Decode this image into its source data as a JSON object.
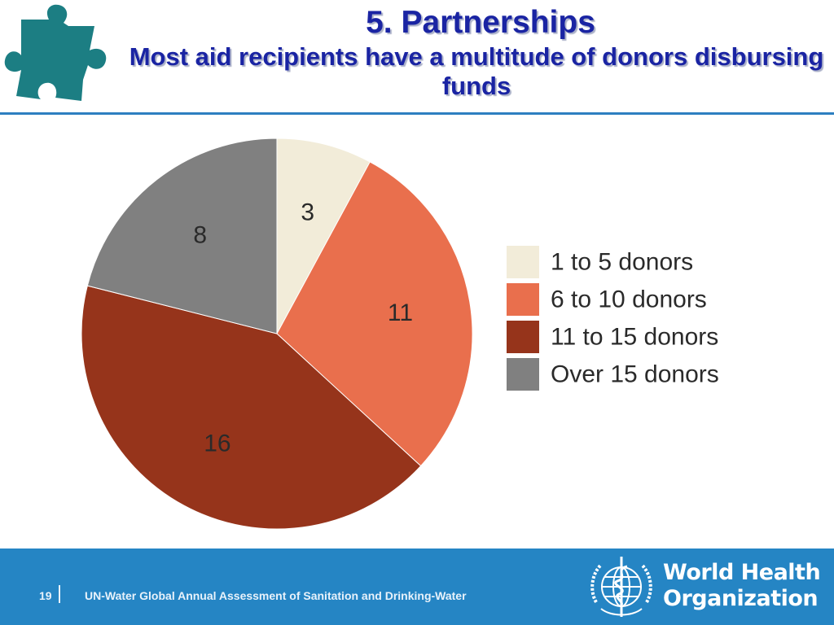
{
  "header": {
    "title": "5. Partnerships",
    "subtitle": "Most aid recipients have a multitude of donors disbursing funds",
    "logo_icon": "puzzle-piece-icon"
  },
  "colors": {
    "title": "#1a24a3",
    "rule": "#2d7fc0",
    "footer": "#2585c4",
    "puzzle": "#1c7e83"
  },
  "chart_data": {
    "type": "pie",
    "categories": [
      "1 to 5 donors",
      "6 to 10 donors",
      "11 to 15 donors",
      "Over 15 donors"
    ],
    "values": [
      3,
      11,
      16,
      8
    ],
    "colors": [
      "#f2ecd9",
      "#e96f4d",
      "#96341b",
      "#808080"
    ],
    "legend_position": "right",
    "start_angle_deg": 0,
    "direction": "clockwise"
  },
  "footer": {
    "page_number": "19",
    "text": "UN-Water Global Annual Assessment of Sanitation and Drinking-Water",
    "org_line1": "World Health",
    "org_line2": "Organization",
    "org_icon": "who-emblem-icon"
  }
}
